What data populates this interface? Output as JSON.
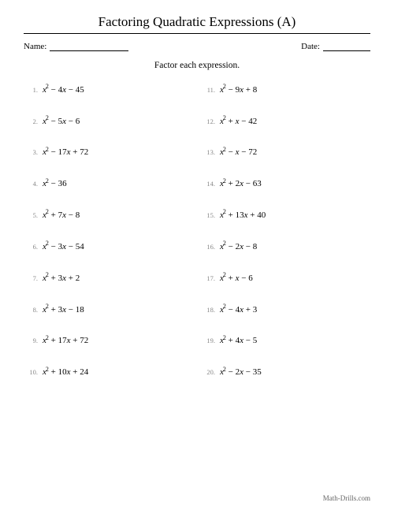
{
  "title": "Factoring Quadratic Expressions (A)",
  "labels": {
    "name": "Name:",
    "date": "Date:"
  },
  "instruction": "Factor each expression.",
  "col1": [
    {
      "n": "1.",
      "b": -4,
      "c": -45
    },
    {
      "n": "2.",
      "b": -5,
      "c": -6
    },
    {
      "n": "3.",
      "b": -17,
      "c": 72
    },
    {
      "n": "4.",
      "b": 0,
      "c": -36
    },
    {
      "n": "5.",
      "b": 7,
      "c": -8
    },
    {
      "n": "6.",
      "b": -3,
      "c": -54
    },
    {
      "n": "7.",
      "b": 3,
      "c": 2
    },
    {
      "n": "8.",
      "b": 3,
      "c": -18
    },
    {
      "n": "9.",
      "b": 17,
      "c": 72
    },
    {
      "n": "10.",
      "b": 10,
      "c": 24
    }
  ],
  "col2": [
    {
      "n": "11.",
      "b": -9,
      "c": 8
    },
    {
      "n": "12.",
      "b": 1,
      "c": -42
    },
    {
      "n": "13.",
      "b": -1,
      "c": -72
    },
    {
      "n": "14.",
      "b": 2,
      "c": -63
    },
    {
      "n": "15.",
      "b": 13,
      "c": 40
    },
    {
      "n": "16.",
      "b": -2,
      "c": -8
    },
    {
      "n": "17.",
      "b": 1,
      "c": -6
    },
    {
      "n": "18.",
      "b": -4,
      "c": 3
    },
    {
      "n": "19.",
      "b": 4,
      "c": -5
    },
    {
      "n": "20.",
      "b": -2,
      "c": -35
    }
  ],
  "footer": "Math-Drills.com"
}
